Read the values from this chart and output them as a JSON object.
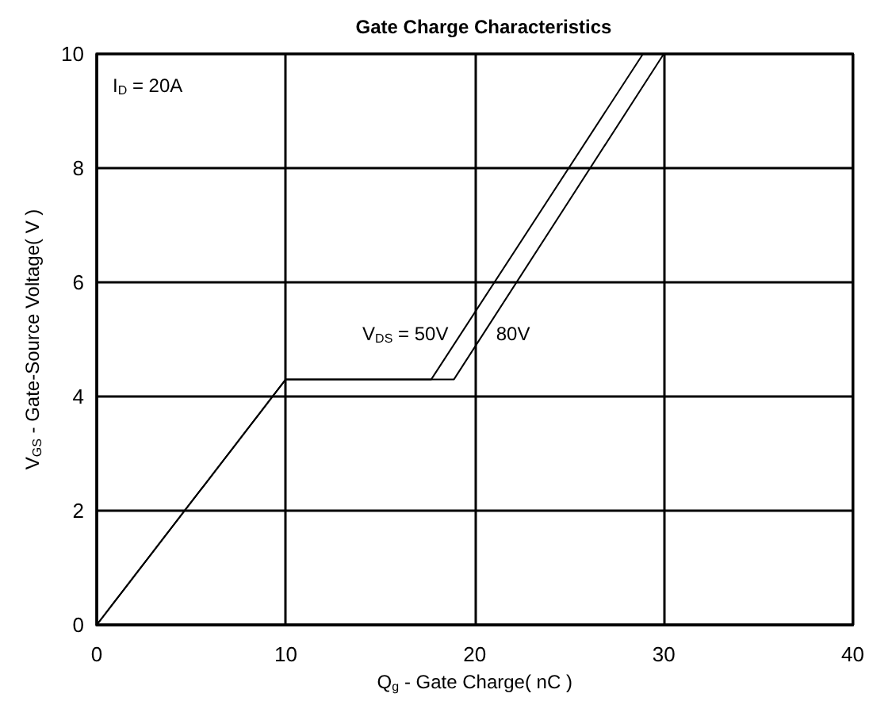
{
  "chart_data": {
    "type": "line",
    "title": "Gate Charge Characteristics",
    "xlabel": "Q$_{g}$ - Gate Charge( nC )",
    "ylabel": "V$_{GS}$ - Gate-Source Voltage( V )",
    "series": [
      {
        "name": "V$_{DS}$ = 50V",
        "color": "#000000",
        "x": [
          0,
          10,
          17.7,
          28.9
        ],
        "values": [
          0,
          4.3,
          4.3,
          10
        ]
      },
      {
        "name": "80V",
        "color": "#000000",
        "x": [
          0,
          10,
          18.9,
          30
        ],
        "values": [
          0,
          4.3,
          4.3,
          10
        ]
      }
    ],
    "xlim": [
      0,
      40
    ],
    "xticks": [
      0,
      10,
      20,
      30,
      40
    ],
    "ylim": [
      0,
      10
    ],
    "yticks": [
      0,
      2,
      4,
      6,
      8,
      10
    ],
    "annotations": [
      "I$_{D}$ = 20A"
    ],
    "grid": true,
    "marker": "none",
    "line_style": "solid"
  }
}
